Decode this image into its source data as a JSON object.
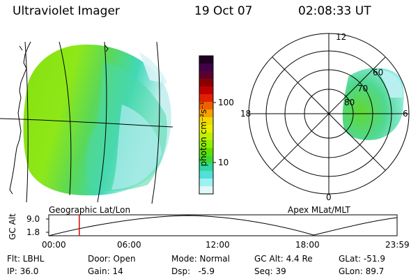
{
  "header": {
    "instrument": "Ultraviolet Imager",
    "date": "19 Oct 07",
    "time": "02:08:33 UT"
  },
  "left_panel": {
    "caption": "Geographic Lat/Lon"
  },
  "colorbar": {
    "label": "photon cm⁻²s⁻¹",
    "ticks": [
      "100",
      "10"
    ],
    "colors": [
      "#200020",
      "#40004a",
      "#5a0030",
      "#8a0000",
      "#c00000",
      "#e02000",
      "#f06000",
      "#f8a000",
      "#f0d800",
      "#e8f000",
      "#c0f000",
      "#90f000",
      "#60e000",
      "#40d830",
      "#30d8a0",
      "#50e0d8",
      "#a0f0f0",
      "#e0f8f8"
    ]
  },
  "right_panel": {
    "caption": "Apex MLat/MLT",
    "mlt_labels": {
      "top": "12",
      "left": "18",
      "right": "6",
      "bottom": "0"
    },
    "lat_labels": [
      "60",
      "70",
      "80"
    ]
  },
  "altitude_plot": {
    "ylabel": "GC Alt",
    "yticks": [
      "9.0",
      "1.8"
    ],
    "xticks": [
      "00:00",
      "06:00",
      "12:00",
      "18:00",
      "23:59"
    ],
    "current_time_fraction": 0.0876
  },
  "info": {
    "row1": {
      "filter": "Flt: LBHL",
      "door": "Door: Open",
      "mode": "Mode: Normal",
      "gc_alt": "GC Alt: 4.4 Re",
      "glat": "GLat: -51.9"
    },
    "row2": {
      "ip": "IP: 36.0",
      "gain": "Gain: 14",
      "dsp": "Dsp:   -5.9",
      "seq": "Seq: 39",
      "glon": "GLon: 89.7"
    }
  }
}
